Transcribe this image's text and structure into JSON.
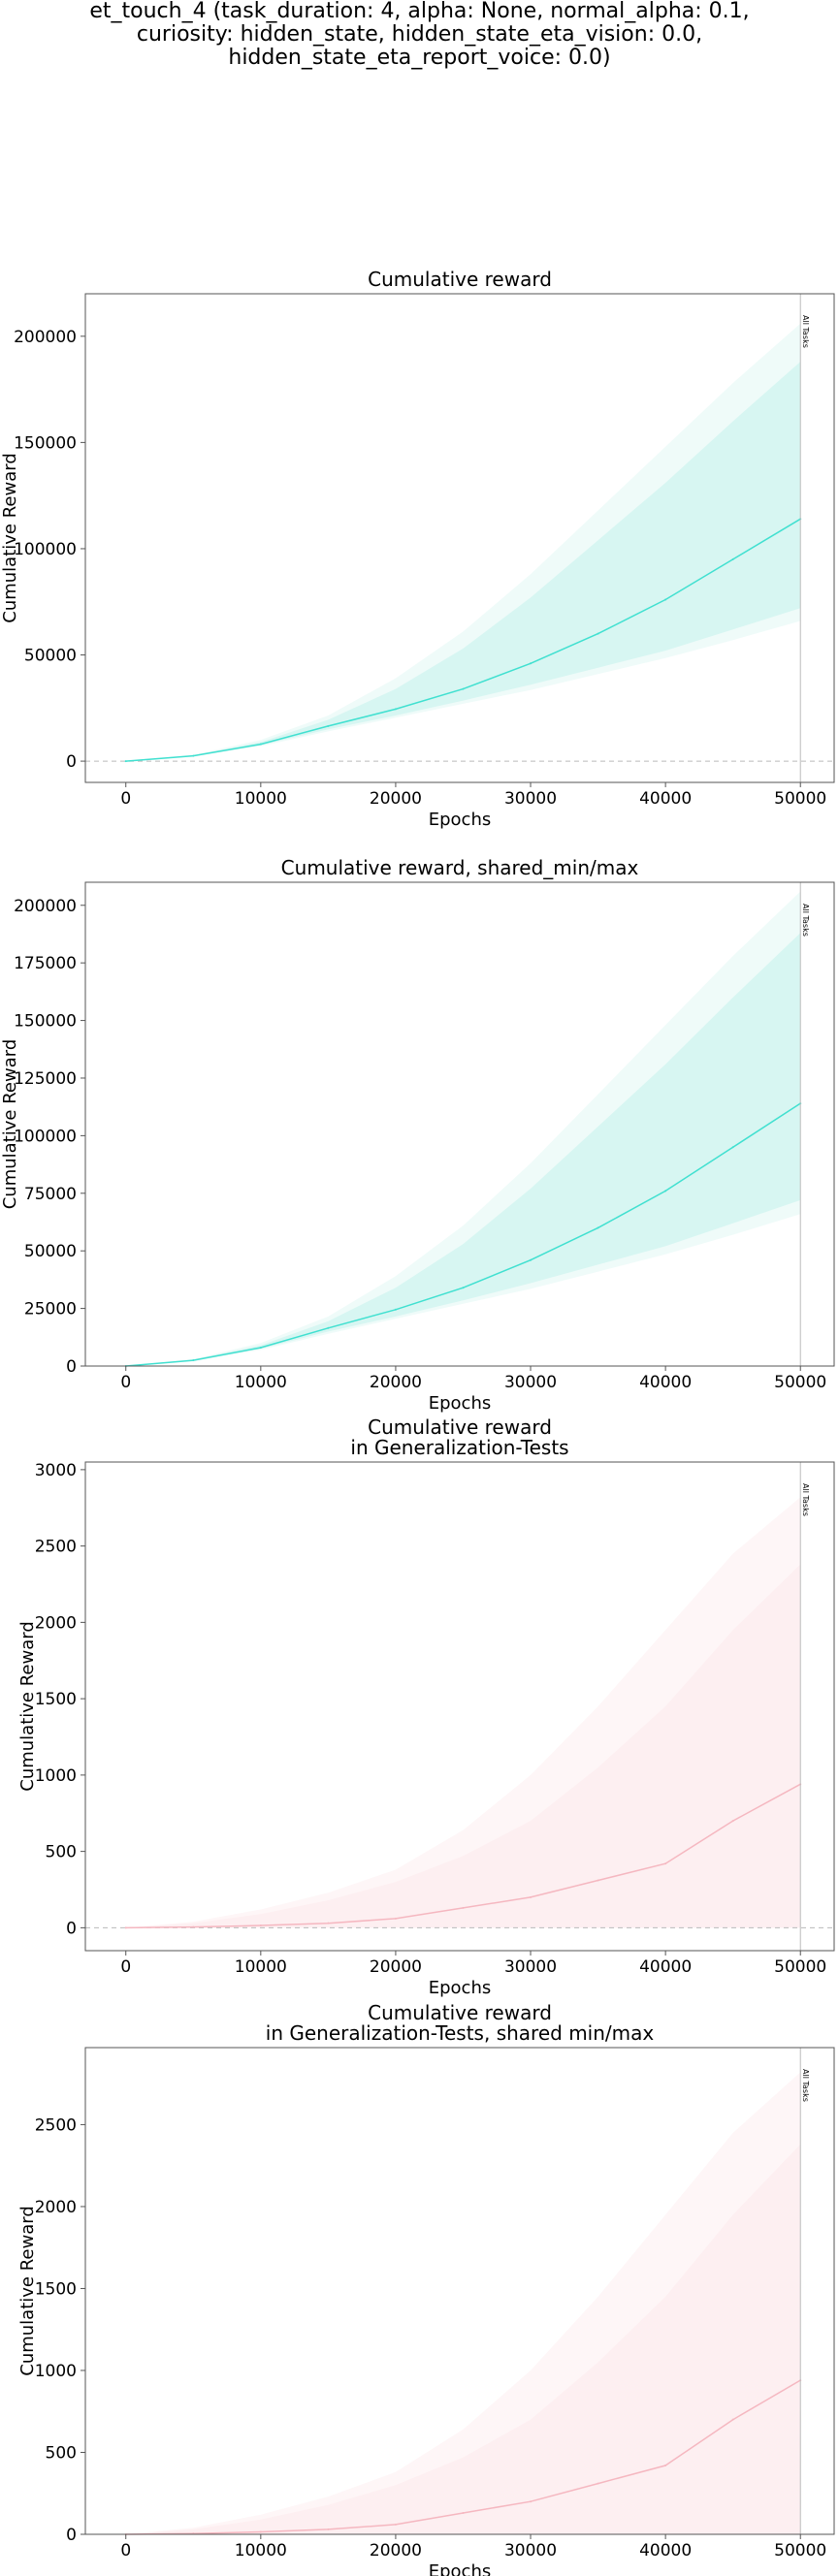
{
  "figure": {
    "suptitle_lines": [
      "et_touch_4 (task_duration: 4, alpha: None, normal_alpha: 0.1,",
      "curiosity: hidden_state, hidden_state_eta_vision: 0.0,",
      "hidden_state_eta_report_voice: 0.0)"
    ]
  },
  "colors": {
    "train_line": "#40E0D0",
    "train_band_inner": "#D7F6F2",
    "train_band_outer": "#EFFBF9",
    "gen_line": "#F5B7C0",
    "gen_band_inner": "#FDEFF1",
    "gen_band_outer": "#FEF6F7",
    "axes": "#555555",
    "zero_line": "#BBBBBB",
    "vline": "#BBBBBB"
  },
  "chart_data": [
    {
      "type": "line",
      "title_lines": [
        "Cumulative reward"
      ],
      "xlabel": "Epochs",
      "ylabel": "Cumulative Reward",
      "xlim": [
        -3000,
        52500
      ],
      "ylim": [
        -10000,
        220000
      ],
      "xticks": [
        0,
        10000,
        20000,
        30000,
        40000,
        50000
      ],
      "yticks": [
        0,
        50000,
        100000,
        150000,
        200000
      ],
      "ytick_labels": [
        "0",
        "50000",
        "100000",
        "150000",
        "200000"
      ],
      "zero_line": true,
      "vline": {
        "x": 50000,
        "label": "All Tasks"
      },
      "palette": "train",
      "x": [
        0,
        5000,
        10000,
        15000,
        20000,
        25000,
        30000,
        35000,
        40000,
        45000,
        50000
      ],
      "series": [
        {
          "values": [
            0,
            2500,
            8000,
            16500,
            24500,
            34000,
            46000,
            60000,
            76000,
            95000,
            114000
          ]
        }
      ],
      "band_inner": {
        "low": [
          0,
          2300,
          7500,
          15000,
          21500,
          28500,
          36000,
          44000,
          52000,
          62000,
          72000
        ],
        "high": [
          0,
          2800,
          9000,
          19500,
          34000,
          53000,
          77000,
          104000,
          131000,
          160000,
          188000
        ]
      },
      "band_outer": {
        "low": [
          0,
          2200,
          7000,
          14000,
          20500,
          27000,
          33500,
          41000,
          48500,
          57000,
          66000
        ],
        "high": [
          0,
          3000,
          10000,
          21500,
          39000,
          61000,
          88000,
          118000,
          148000,
          178000,
          206000
        ]
      }
    },
    {
      "type": "line",
      "title_lines": [
        "Cumulative reward, shared_min/max"
      ],
      "xlabel": "Epochs",
      "ylabel": "Cumulative Reward",
      "xlim": [
        -3000,
        52500
      ],
      "ylim": [
        0,
        210000
      ],
      "xticks": [
        0,
        10000,
        20000,
        30000,
        40000,
        50000
      ],
      "yticks": [
        0,
        25000,
        50000,
        75000,
        100000,
        125000,
        150000,
        175000,
        200000
      ],
      "ytick_labels": [
        "0",
        "25000",
        "50000",
        "75000",
        "100000",
        "125000",
        "150000",
        "175000",
        "200000"
      ],
      "zero_line": false,
      "vline": {
        "x": 50000,
        "label": "All Tasks"
      },
      "palette": "train",
      "x": [
        0,
        5000,
        10000,
        15000,
        20000,
        25000,
        30000,
        35000,
        40000,
        45000,
        50000
      ],
      "series": [
        {
          "values": [
            0,
            2500,
            8000,
            16500,
            24500,
            34000,
            46000,
            60000,
            76000,
            95000,
            114000
          ]
        }
      ],
      "band_inner": {
        "low": [
          0,
          2300,
          7500,
          15000,
          21500,
          28500,
          36000,
          44000,
          52000,
          62000,
          72000
        ],
        "high": [
          0,
          2800,
          9000,
          19500,
          34000,
          53000,
          77000,
          104000,
          131000,
          160000,
          188000
        ]
      },
      "band_outer": {
        "low": [
          0,
          2200,
          7000,
          14000,
          20500,
          27000,
          33500,
          41000,
          48500,
          57000,
          66000
        ],
        "high": [
          0,
          3000,
          10000,
          21500,
          39000,
          61000,
          88000,
          118000,
          148000,
          178000,
          206000
        ]
      }
    },
    {
      "type": "line",
      "title_lines": [
        "Cumulative reward",
        "in Generalization-Tests"
      ],
      "xlabel": "Epochs",
      "ylabel": "Cumulative Reward",
      "xlim": [
        -3000,
        52500
      ],
      "ylim": [
        -150,
        3050
      ],
      "xticks": [
        0,
        10000,
        20000,
        30000,
        40000,
        50000
      ],
      "yticks": [
        0,
        500,
        1000,
        1500,
        2000,
        2500,
        3000
      ],
      "ytick_labels": [
        "0",
        "500",
        "1000",
        "1500",
        "2000",
        "2500",
        "3000"
      ],
      "zero_line": true,
      "vline": {
        "x": 50000,
        "label": "All Tasks"
      },
      "palette": "gen",
      "x": [
        0,
        5000,
        10000,
        15000,
        20000,
        25000,
        30000,
        35000,
        40000,
        45000,
        50000
      ],
      "series": [
        {
          "values": [
            0,
            5,
            15,
            30,
            60,
            130,
            200,
            310,
            420,
            700,
            940
          ]
        }
      ],
      "band_inner": {
        "low": [
          0,
          0,
          0,
          0,
          0,
          0,
          0,
          0,
          0,
          0,
          0
        ],
        "high": [
          0,
          30,
          90,
          180,
          300,
          470,
          700,
          1050,
          1450,
          1950,
          2380
        ]
      },
      "band_outer": {
        "low": [
          0,
          0,
          0,
          0,
          0,
          0,
          0,
          0,
          0,
          0,
          0
        ],
        "high": [
          0,
          40,
          120,
          230,
          380,
          640,
          1000,
          1450,
          1950,
          2450,
          2820
        ]
      }
    },
    {
      "type": "line",
      "title_lines": [
        "Cumulative reward",
        "in Generalization-Tests, shared min/max"
      ],
      "xlabel": "Epochs",
      "ylabel": "Cumulative Reward",
      "xlim": [
        -3000,
        52500
      ],
      "ylim": [
        0,
        2970
      ],
      "xticks": [
        0,
        10000,
        20000,
        30000,
        40000,
        50000
      ],
      "yticks": [
        0,
        500,
        1000,
        1500,
        2000,
        2500
      ],
      "ytick_labels": [
        "0",
        "500",
        "1000",
        "1500",
        "2000",
        "2500"
      ],
      "zero_line": false,
      "vline": {
        "x": 50000,
        "label": "All Tasks"
      },
      "palette": "gen",
      "x": [
        0,
        5000,
        10000,
        15000,
        20000,
        25000,
        30000,
        35000,
        40000,
        45000,
        50000
      ],
      "series": [
        {
          "values": [
            0,
            5,
            15,
            30,
            60,
            130,
            200,
            310,
            420,
            700,
            940
          ]
        }
      ],
      "band_inner": {
        "low": [
          0,
          0,
          0,
          0,
          0,
          0,
          0,
          0,
          0,
          0,
          0
        ],
        "high": [
          0,
          30,
          90,
          180,
          300,
          470,
          700,
          1050,
          1450,
          1950,
          2380
        ]
      },
      "band_outer": {
        "low": [
          0,
          0,
          0,
          0,
          0,
          0,
          0,
          0,
          0,
          0,
          0
        ],
        "high": [
          0,
          40,
          120,
          230,
          380,
          640,
          1000,
          1450,
          1950,
          2450,
          2820
        ]
      }
    }
  ]
}
